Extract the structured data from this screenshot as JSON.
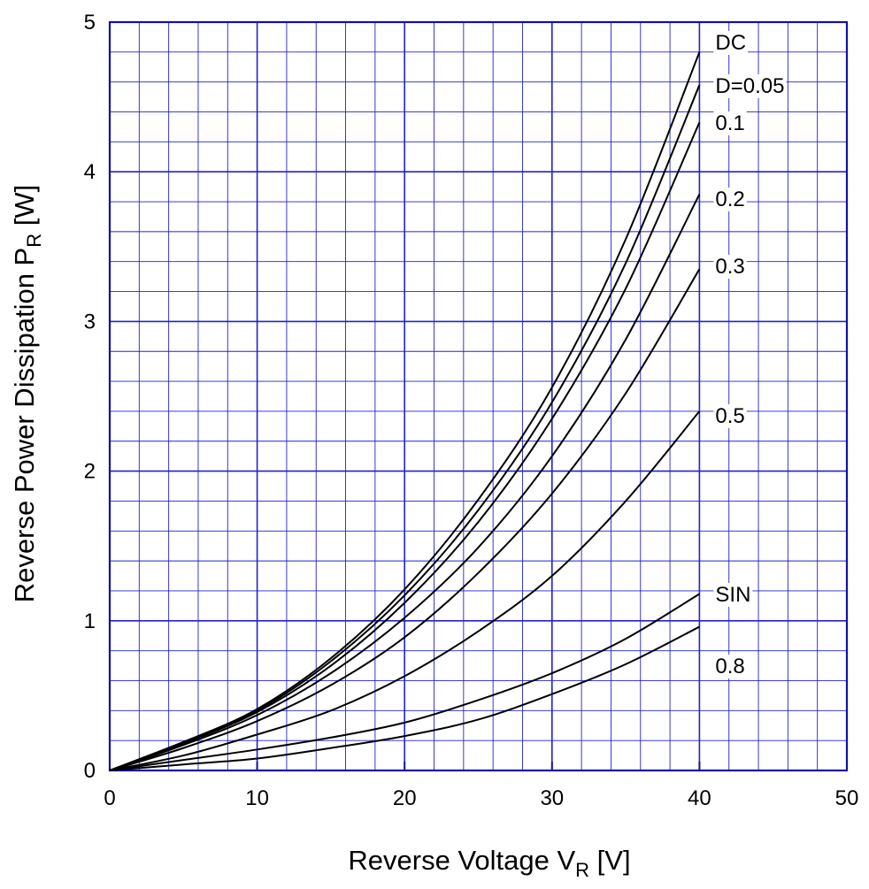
{
  "chart_data": {
    "type": "line",
    "title": "",
    "xlabel": {
      "main": "Reverse Voltage  V",
      "sub": "R",
      "unit": "  [V]"
    },
    "ylabel": {
      "main": "Reverse Power Dissipation  P",
      "sub": "R",
      "unit": "  [W]"
    },
    "xlim": [
      0,
      50
    ],
    "ylim": [
      0,
      5
    ],
    "x_ticks": [
      0,
      10,
      20,
      30,
      40,
      50
    ],
    "y_ticks": [
      0,
      1,
      2,
      3,
      4,
      5
    ],
    "x_tick_labels": [
      "0",
      "10",
      "20",
      "30",
      "40",
      "50"
    ],
    "y_tick_labels": [
      "0",
      "1",
      "2",
      "3",
      "4",
      "5"
    ],
    "grid": {
      "major": true,
      "minor": true,
      "x_minor_step": 2,
      "y_minor_step": 0.2
    },
    "colors": {
      "grid": "#2222cc",
      "frame": "#1111aa",
      "curve": "#000000"
    },
    "x": [
      0,
      5,
      10,
      15,
      20,
      25,
      30,
      35,
      40
    ],
    "series": [
      {
        "name": "DC",
        "values": [
          0,
          0.19,
          0.41,
          0.75,
          1.21,
          1.81,
          2.56,
          3.55,
          4.8
        ]
      },
      {
        "name": "D=0.05",
        "values": [
          0,
          0.19,
          0.4,
          0.73,
          1.17,
          1.74,
          2.46,
          3.39,
          4.58
        ]
      },
      {
        "name": "0.1",
        "values": [
          0,
          0.18,
          0.39,
          0.7,
          1.12,
          1.66,
          2.35,
          3.22,
          4.33
        ]
      },
      {
        "name": "0.2",
        "values": [
          0,
          0.17,
          0.37,
          0.65,
          1.02,
          1.49,
          2.1,
          2.88,
          3.85
        ]
      },
      {
        "name": "0.3",
        "values": [
          0,
          0.15,
          0.33,
          0.57,
          0.89,
          1.32,
          1.85,
          2.52,
          3.35
        ]
      },
      {
        "name": "0.5",
        "values": [
          0,
          0.1,
          0.24,
          0.4,
          0.63,
          0.93,
          1.3,
          1.8,
          2.4
        ]
      },
      {
        "name": "SIN",
        "values": [
          0,
          0.07,
          0.14,
          0.22,
          0.32,
          0.47,
          0.65,
          0.88,
          1.18
        ]
      },
      {
        "name": "0.8",
        "values": [
          0,
          0.04,
          0.08,
          0.15,
          0.23,
          0.34,
          0.51,
          0.71,
          0.96
        ]
      }
    ],
    "legend": "inline-right"
  }
}
